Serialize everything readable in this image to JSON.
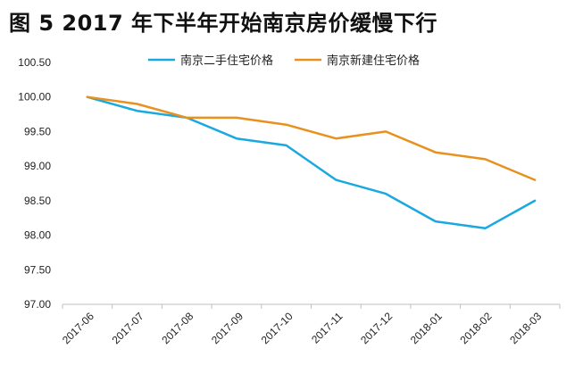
{
  "title": "图 5 2017 年下半年开始南京房价缓慢下行",
  "colors": {
    "series_1": "#1aa8e0",
    "series_2": "#e8911e",
    "axis": "#bfbfbf"
  },
  "chart_data": {
    "type": "line",
    "title": "图 5 2017 年下半年开始南京房价缓慢下行",
    "xlabel": "",
    "ylabel": "",
    "categories": [
      "2017-06",
      "2017-07",
      "2017-08",
      "2017-09",
      "2017-10",
      "2017-11",
      "2017-12",
      "2018-01",
      "2018-02",
      "2018-03"
    ],
    "ylim": [
      97.0,
      100.5
    ],
    "yticks": [
      "97.00",
      "97.50",
      "98.00",
      "98.50",
      "99.00",
      "99.50",
      "100.00",
      "100.50"
    ],
    "grid": false,
    "legend_position": "top",
    "series": [
      {
        "name": "南京二手住宅价格",
        "color": "#1aa8e0",
        "values": [
          100.0,
          99.8,
          99.7,
          99.4,
          99.3,
          98.8,
          98.6,
          98.2,
          98.1,
          98.5
        ]
      },
      {
        "name": "南京新建住宅价格",
        "color": "#e8911e",
        "values": [
          100.0,
          99.9,
          99.7,
          99.7,
          99.6,
          99.4,
          99.5,
          99.2,
          99.1,
          98.8
        ]
      }
    ]
  }
}
